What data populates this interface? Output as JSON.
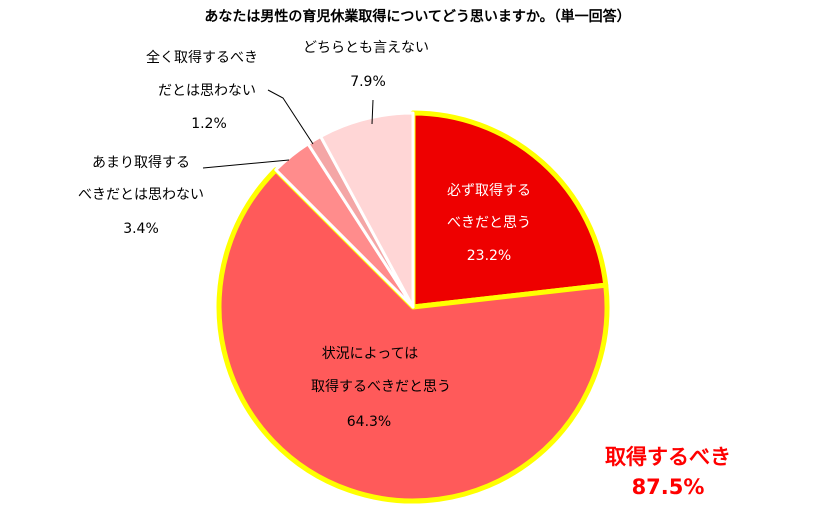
{
  "chart_data": {
    "type": "pie",
    "title": "あなたは男性の育児休業取得についてどう思いますか。（単一回答）",
    "slices": [
      {
        "label": "必ず取得するべきだと思う",
        "label_lines": [
          "必ず取得する",
          "べきだと思う"
        ],
        "value": 23.2,
        "value_label": "23.2%",
        "color": "#ee0000"
      },
      {
        "label": "状況によっては取得するべきだと思う",
        "label_lines": [
          "状況によっては",
          "取得するべきだと思う"
        ],
        "value": 64.3,
        "value_label": "64.3%",
        "color": "#ff5a5a"
      },
      {
        "label": "あまり取得するべきだとは思わない",
        "label_lines": [
          "あまり取得する",
          "べきだとは思わない"
        ],
        "value": 3.4,
        "value_label": "3.4%",
        "color": "#ff8c8c"
      },
      {
        "label": "全く取得するべきだとは思わない",
        "label_lines": [
          "全く取得するべき",
          "だとは思わない"
        ],
        "value": 1.2,
        "value_label": "1.2%",
        "color": "#f4a6a6"
      },
      {
        "label": "どちらとも言えない",
        "label_lines": [
          "どちらとも言えない"
        ],
        "value": 7.9,
        "value_label": "7.9%",
        "color": "#ffd6d6"
      }
    ],
    "summary": {
      "label": "取得するべき",
      "value": "87.5%"
    },
    "border_color": "#ffff00"
  }
}
